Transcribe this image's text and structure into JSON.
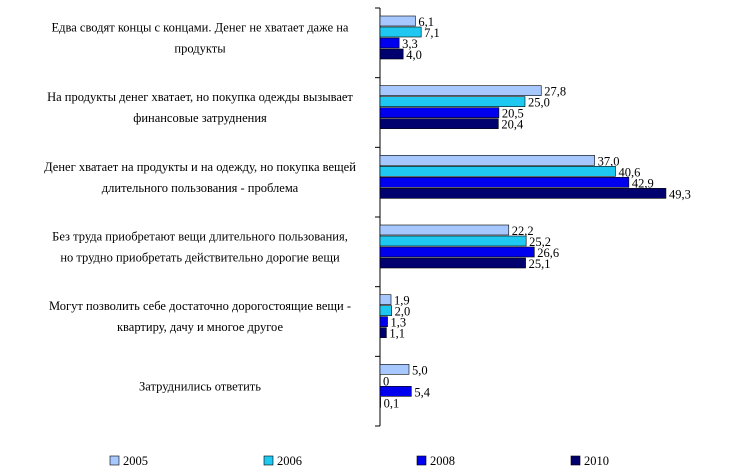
{
  "chart_data": {
    "type": "bar",
    "orientation": "horizontal",
    "categories": [
      [
        "Едва сводят концы с концами. Денег не хватает даже на",
        "продукты"
      ],
      [
        "На продукты денег хватает, но покупка одежды вызывает",
        "финансовые затруднения"
      ],
      [
        "Денег хватает на продукты и на одежду, но покупка вещей",
        "длительного пользования - проблема"
      ],
      [
        "Без труда приобретают вещи длительного пользования,",
        "но трудно приобретать действительно дорогие вещи"
      ],
      [
        "Могут позволить себе достаточно дорогостоящие вещи -",
        "квартиру, дачу и многое другое"
      ],
      [
        "Затруднились ответить"
      ]
    ],
    "series": [
      {
        "name": "2005",
        "color": "#a6c8ff",
        "values": [
          6.1,
          27.8,
          37.0,
          22.2,
          1.9,
          5.0
        ],
        "labels": [
          "6,1",
          "27,8",
          "37,0",
          "22,2",
          "1,9",
          "5,0"
        ]
      },
      {
        "name": "2006",
        "color": "#1ec8f0",
        "values": [
          7.1,
          25.0,
          40.6,
          25.2,
          2.0,
          0
        ],
        "labels": [
          "7,1",
          "25,0",
          "40,6",
          "25,2",
          "2,0",
          "0"
        ]
      },
      {
        "name": "2008",
        "color": "#0000ee",
        "values": [
          3.3,
          20.5,
          42.9,
          26.6,
          1.3,
          5.4
        ],
        "labels": [
          "3,3",
          "20,5",
          "42,9",
          "26,6",
          "1,3",
          "5,4"
        ]
      },
      {
        "name": "2010",
        "color": "#00006e",
        "values": [
          4.0,
          20.4,
          49.3,
          25.1,
          1.1,
          0.1
        ],
        "labels": [
          "4,0",
          "20,4",
          "49,3",
          "25,1",
          "1,1",
          "0,1"
        ]
      }
    ],
    "xlim": [
      0,
      50
    ],
    "legend_position": "bottom",
    "grid": false,
    "title": "",
    "xlabel": "",
    "ylabel": ""
  }
}
